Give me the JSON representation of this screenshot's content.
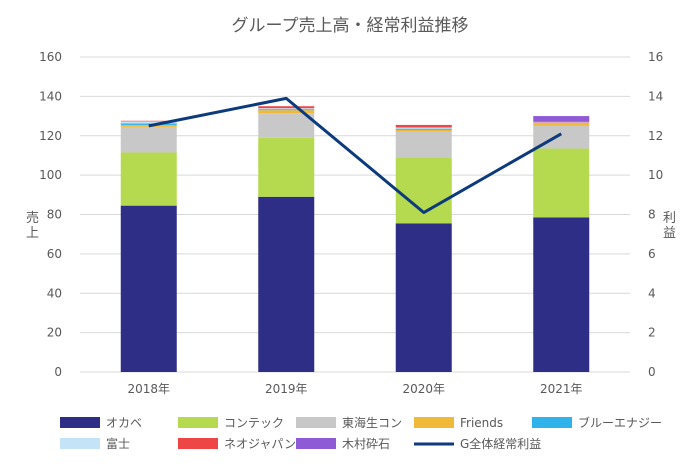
{
  "chart_data": {
    "type": "bar",
    "title": "グループ売上高・経常利益推移",
    "categories": [
      "2018年",
      "2019年",
      "2020年",
      "2021年"
    ],
    "y_left": {
      "label": "売上",
      "min": 0,
      "max": 160,
      "ticks": [
        0,
        20,
        40,
        60,
        80,
        100,
        120,
        140,
        160
      ]
    },
    "y_right": {
      "label": "利益",
      "min": 0,
      "max": 16,
      "ticks": [
        0,
        2,
        4,
        6,
        8,
        10,
        12,
        14,
        16
      ]
    },
    "grid": true,
    "legend_position": "bottom",
    "stacked_series": [
      {
        "name": "オカベ",
        "color": "#2e2e86",
        "values": [
          84.5,
          89,
          75.5,
          78.5
        ]
      },
      {
        "name": "コンテック",
        "color": "#b5d94f",
        "values": [
          27,
          30,
          33.5,
          35
        ]
      },
      {
        "name": "東海生コン",
        "color": "#c8c8c8",
        "values": [
          13,
          12.5,
          13,
          11.5
        ]
      },
      {
        "name": "Friends",
        "color": "#f0b93a",
        "values": [
          1,
          1.5,
          1,
          1
        ]
      },
      {
        "name": "ブルーエナジー",
        "color": "#2fb3ea",
        "values": [
          0.8,
          0.5,
          0.6,
          0.3
        ]
      },
      {
        "name": "富士",
        "color": "#c5e3f6",
        "values": [
          1,
          0.5,
          0.6,
          0.5
        ]
      },
      {
        "name": "ネオジャパン",
        "color": "#ee4545",
        "values": [
          0.3,
          1,
          1.3,
          0.3
        ]
      },
      {
        "name": "木村砕石",
        "color": "#8f5ad6",
        "values": [
          0,
          0,
          0,
          2.9
        ]
      }
    ],
    "line_series": {
      "name": "G全体経常利益",
      "color": "#0c3a7c",
      "axis": "right",
      "values": [
        12.5,
        13.9,
        8.1,
        12.1
      ]
    }
  }
}
